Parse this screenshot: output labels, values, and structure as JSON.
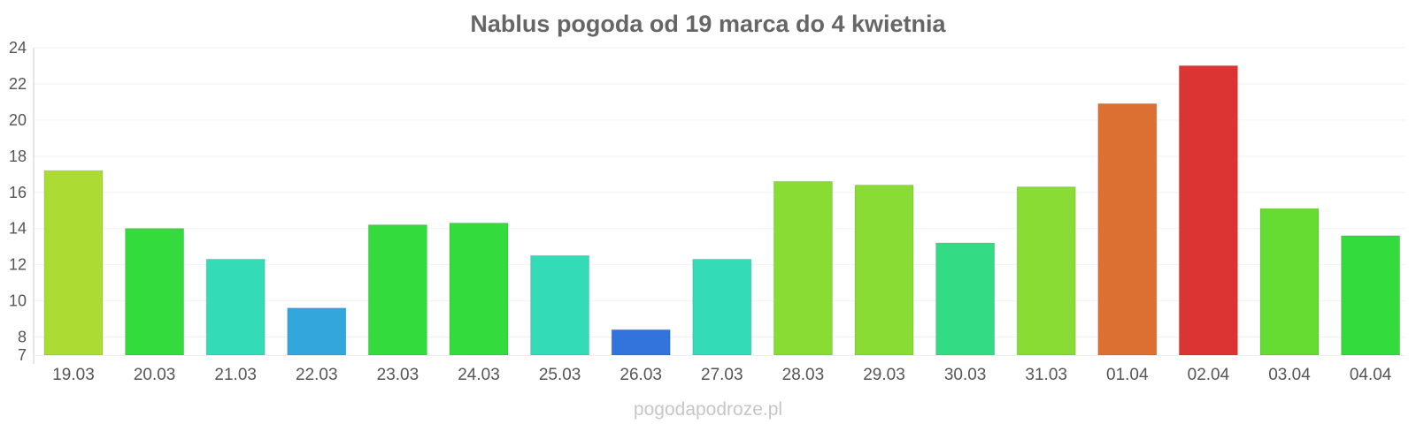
{
  "watermark": "pogodapodroze.pl",
  "chart_data": {
    "type": "bar",
    "title": "Nablus pogoda od 19 marca do 4 kwietnia",
    "xlabel": "",
    "ylabel": "",
    "categories": [
      "19.03",
      "20.03",
      "21.03",
      "22.03",
      "23.03",
      "24.03",
      "25.03",
      "26.03",
      "27.03",
      "28.03",
      "29.03",
      "30.03",
      "31.03",
      "01.04",
      "02.04",
      "03.04",
      "04.04"
    ],
    "values": [
      17.2,
      14.0,
      12.3,
      9.6,
      14.2,
      14.3,
      12.5,
      8.4,
      12.3,
      16.6,
      16.4,
      13.2,
      16.3,
      20.9,
      23.0,
      15.1,
      13.6
    ],
    "colors": [
      "#acdc33",
      "#33dc3c",
      "#33dcb7",
      "#33a6dc",
      "#33dc3c",
      "#33dc3c",
      "#33dcb7",
      "#3373dc",
      "#33dcb7",
      "#88dc33",
      "#88dc33",
      "#33dc84",
      "#88dc33",
      "#dc7033",
      "#dc3333",
      "#66dc33",
      "#33dc3c"
    ],
    "ylim": [
      7,
      24
    ],
    "yticks": [
      7,
      8,
      10,
      12,
      14,
      16,
      18,
      20,
      22,
      24
    ],
    "grid": true,
    "legend": "none"
  }
}
